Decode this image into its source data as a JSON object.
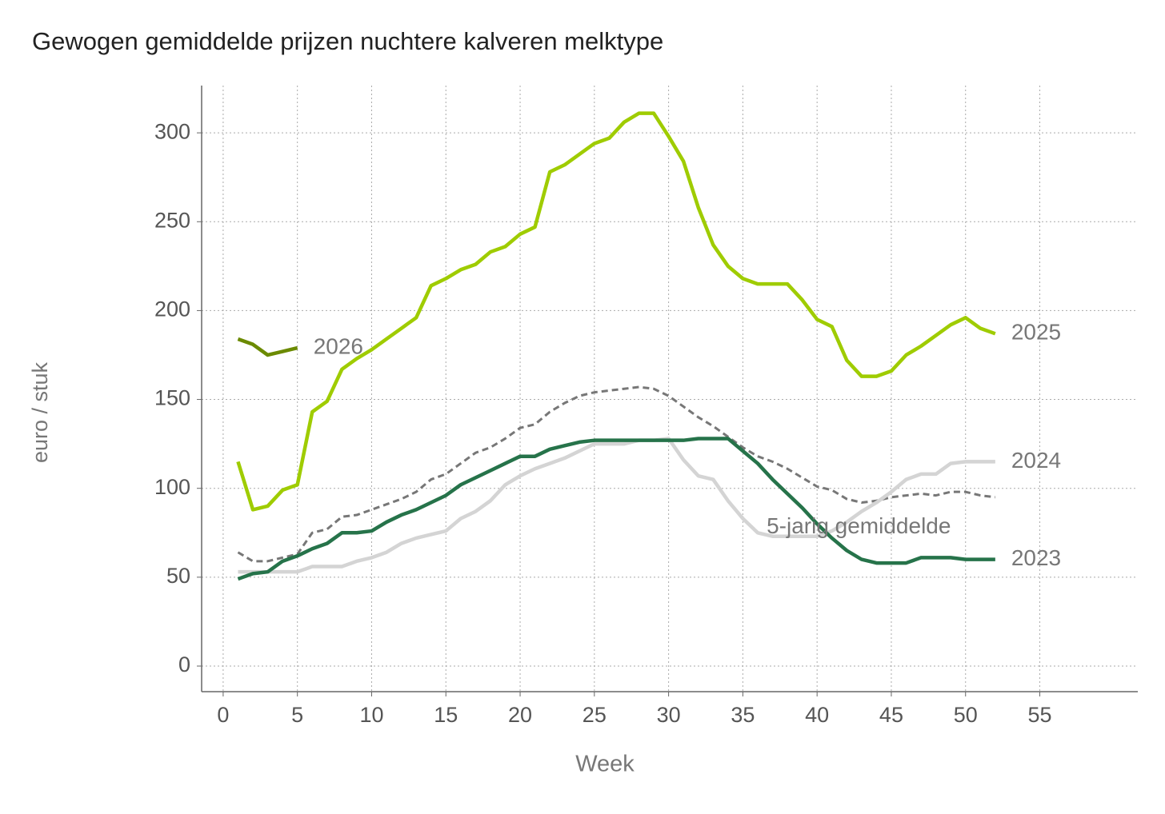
{
  "chart_data": {
    "type": "line",
    "title": "Gewogen gemiddelde prijzen nuchtere kalveren melktype",
    "x_label": "Week",
    "y_label": "euro / stuk",
    "x": [
      1,
      2,
      3,
      4,
      5,
      6,
      7,
      8,
      9,
      10,
      11,
      12,
      13,
      14,
      15,
      16,
      17,
      18,
      19,
      20,
      21,
      22,
      23,
      24,
      25,
      26,
      27,
      28,
      29,
      30,
      31,
      32,
      33,
      34,
      35,
      36,
      37,
      38,
      39,
      40,
      41,
      42,
      43,
      44,
      45,
      46,
      47,
      48,
      49,
      50,
      51,
      52
    ],
    "xlim": [
      -1.45,
      61.6
    ],
    "ylim": [
      -14.4,
      326.6
    ],
    "xticks": [
      0,
      5,
      10,
      15,
      20,
      25,
      30,
      35,
      40,
      45,
      50,
      55
    ],
    "yticks": [
      0,
      50,
      100,
      150,
      200,
      250,
      300
    ],
    "grid": true,
    "series": [
      {
        "name": "5-jarig gemiddelde",
        "color": "#777777",
        "dashed": true,
        "values": [
          64,
          59,
          59,
          61,
          63,
          75,
          77,
          84,
          85,
          88,
          91,
          94,
          98,
          105,
          108,
          114,
          120,
          123,
          128,
          134,
          136,
          143,
          148,
          152,
          154,
          155,
          156,
          157,
          156,
          152,
          146,
          140,
          135,
          129,
          123,
          118,
          115,
          111,
          106,
          101,
          99,
          94,
          92,
          93,
          95,
          96,
          97,
          96,
          98,
          98,
          96,
          95
        ]
      },
      {
        "name": "2024",
        "color": "#d4d4d4",
        "values": [
          53,
          53,
          53,
          53,
          53,
          56,
          56,
          56,
          59,
          61,
          64,
          69,
          72,
          74,
          76,
          83,
          87,
          93,
          102,
          107,
          111,
          114,
          117,
          121,
          125,
          125,
          125,
          127,
          127,
          128,
          116,
          107,
          105,
          93,
          83,
          75,
          73,
          73,
          73,
          73,
          76,
          81,
          87,
          92,
          98,
          105,
          108,
          108,
          114,
          115,
          115,
          115
        ]
      },
      {
        "name": "2023",
        "color": "#26734a",
        "values": [
          49,
          52,
          53,
          59,
          62,
          66,
          69,
          75,
          75,
          76,
          81,
          85,
          88,
          92,
          96,
          102,
          106,
          110,
          114,
          118,
          118,
          122,
          124,
          126,
          127,
          127,
          127,
          127,
          127,
          127,
          127,
          128,
          128,
          128,
          121,
          114,
          105,
          97,
          89,
          80,
          72,
          65,
          60,
          58,
          58,
          58,
          61,
          61,
          61,
          60,
          60,
          60
        ]
      },
      {
        "name": "2025",
        "color": "#9fcc00",
        "values": [
          115,
          88,
          90,
          99,
          102,
          143,
          149,
          167,
          173,
          178,
          184,
          190,
          196,
          214,
          218,
          223,
          226,
          233,
          236,
          243,
          247,
          278,
          282,
          288,
          294,
          297,
          306,
          311,
          311,
          298,
          284,
          258,
          237,
          225,
          218,
          215,
          215,
          215,
          206,
          195,
          191,
          172,
          163,
          163,
          166,
          175,
          180,
          186,
          192,
          196,
          190,
          187
        ]
      },
      {
        "name": "2026",
        "color": "#6b8a00",
        "values": [
          184,
          181,
          175,
          177,
          179,
          null,
          null,
          null,
          null,
          null,
          null,
          null,
          null,
          null,
          null,
          null,
          null,
          null,
          null,
          null,
          null,
          null,
          null,
          null,
          null,
          null,
          null,
          null,
          null,
          null,
          null,
          null,
          null,
          null,
          null,
          null,
          null,
          null,
          null,
          null,
          null,
          null,
          null,
          null,
          null,
          null,
          null,
          null,
          null,
          null,
          null,
          null
        ]
      }
    ]
  }
}
